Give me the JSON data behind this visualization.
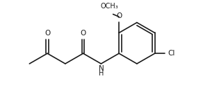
{
  "bg_color": "#ffffff",
  "line_color": "#1a1a1a",
  "line_width": 1.2,
  "font_size": 7.0,
  "figsize": [
    2.92,
    1.43
  ],
  "dpi": 100,
  "xlim": [
    0,
    9.5
  ],
  "ylim": [
    0.5,
    5.5
  ]
}
